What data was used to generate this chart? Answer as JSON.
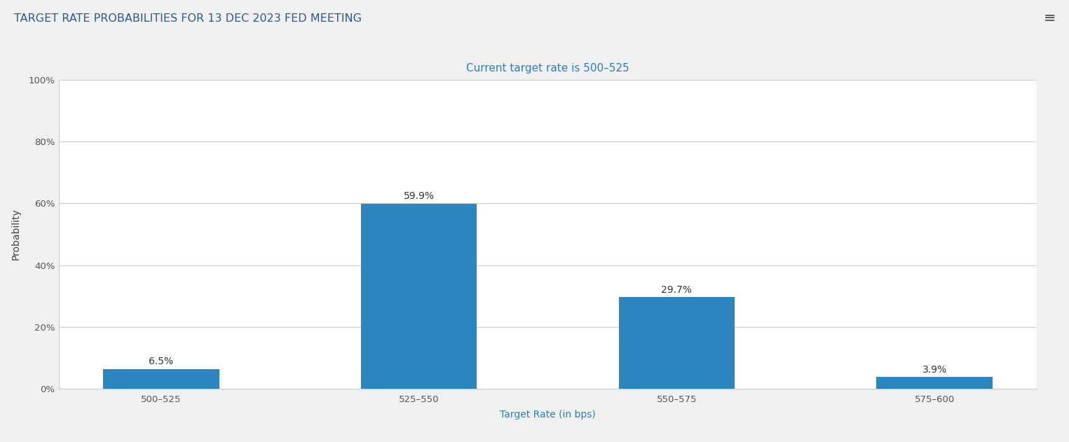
{
  "title": "TARGET RATE PROBABILITIES FOR 13 DEC 2023 FED MEETING",
  "subtitle": "Current target rate is 500–525",
  "categories": [
    "500–525",
    "525–550",
    "550–575",
    "575–600"
  ],
  "values": [
    6.5,
    59.9,
    29.7,
    3.9
  ],
  "bar_color": "#2e86c1",
  "xlabel": "Target Rate (in bps)",
  "ylabel": "Probability",
  "ylim": [
    0,
    100
  ],
  "yticks": [
    0,
    20,
    40,
    60,
    80,
    100
  ],
  "ytick_labels": [
    "0%",
    "20%",
    "40%",
    "60%",
    "80%",
    "100%"
  ],
  "title_color": "#2c5a8f",
  "subtitle_color": "#2980b9",
  "xlabel_color": "#2980b9",
  "ylabel_color": "#444444",
  "background_color": "#f0f0f0",
  "plot_bg_color": "#ffffff",
  "grid_color": "#cccccc",
  "title_fontsize": 11.5,
  "subtitle_fontsize": 11,
  "axis_label_fontsize": 10,
  "tick_fontsize": 9.5,
  "bar_label_fontsize": 10,
  "bar_width": 0.45
}
